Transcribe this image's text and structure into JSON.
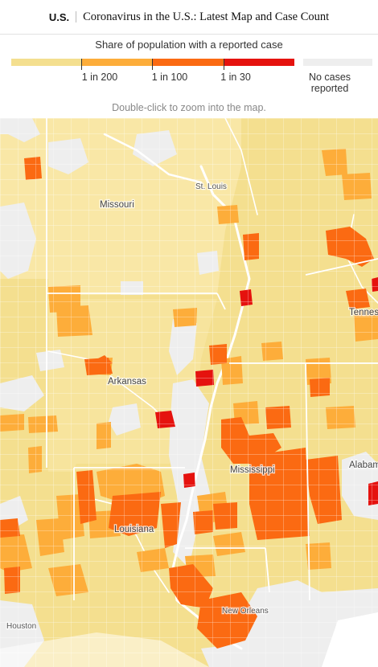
{
  "header": {
    "section": "U.S.",
    "headline": "Coronavirus in the U.S.: Latest Map and Case Count"
  },
  "legend": {
    "title": "Share of population with a reported case",
    "bins": [
      {
        "color": "#f4df8f"
      },
      {
        "color": "#fdad3a",
        "threshold_label": "1 in 200"
      },
      {
        "color": "#fb6a12",
        "threshold_label": "1 in 100"
      },
      {
        "color": "#e5120e",
        "threshold_label": "1 in 30"
      }
    ],
    "no_cases": {
      "color": "#eeeeee",
      "line1": "No cases",
      "line2": "reported"
    },
    "hint": "Double-click to zoom into the map."
  },
  "map": {
    "colors": {
      "base": "#f4df8f",
      "light": "#f9e7a6",
      "medium": "#fdad3a",
      "high": "#fb6a12",
      "highest": "#e5120e",
      "none": "#eeeeee",
      "water": "#ffffff"
    },
    "states": [
      "Missouri",
      "Arkansas",
      "Mississippi",
      "Louisiana",
      "Tennessee",
      "Alabama"
    ],
    "cities": [
      "St. Louis",
      "New Orleans",
      "Houston"
    ]
  }
}
